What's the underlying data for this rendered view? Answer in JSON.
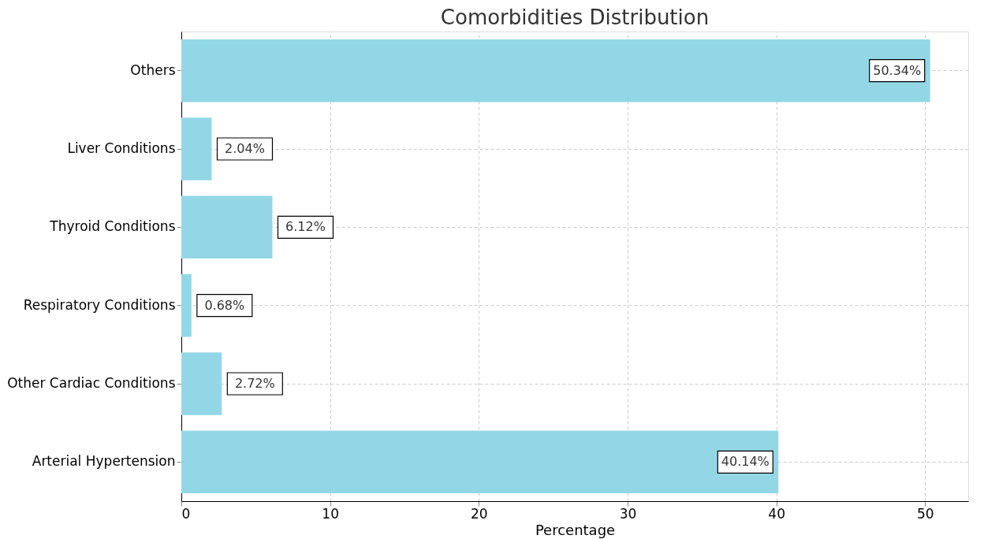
{
  "chart_data": {
    "type": "bar",
    "orientation": "horizontal",
    "title": "Comorbidities Distribution",
    "xlabel": "Percentage",
    "categories": [
      "Others",
      "Liver Conditions",
      "Thyroid Conditions",
      "Respiratory Conditions",
      "Other Cardiac Conditions",
      "Arterial Hypertension"
    ],
    "values": [
      50.34,
      2.04,
      6.12,
      0.68,
      2.72,
      40.14
    ],
    "value_labels": [
      "50.34%",
      "2.04%",
      "6.12%",
      "0.68%",
      "2.72%",
      "40.14%"
    ],
    "color": "#93d7e6",
    "xlim": [
      0,
      52.9
    ],
    "xticks": [
      0,
      10,
      20,
      30,
      40,
      50
    ],
    "grid": true
  }
}
